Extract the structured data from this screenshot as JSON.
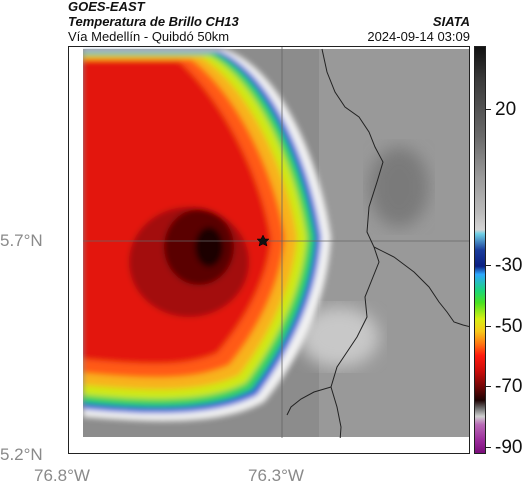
{
  "header": {
    "satellite": "GOES-EAST",
    "product": "Temperatura de Brillo CH13",
    "route": "Vía Medellín - Quibdó 50km",
    "agency": "SIATA",
    "datetime": "2024-09-14 03:09"
  },
  "map": {
    "y_axis_labels": [
      "5.7°N",
      "5.2°N"
    ],
    "x_axis_labels": [
      "76.8°W",
      "76.3°W"
    ],
    "marker": "star-marker"
  },
  "colorbar": {
    "tick_labels": [
      "20",
      "-30",
      "-50",
      "-70",
      "-90"
    ],
    "values": [
      20,
      -30,
      -50,
      -70,
      -90
    ]
  }
}
